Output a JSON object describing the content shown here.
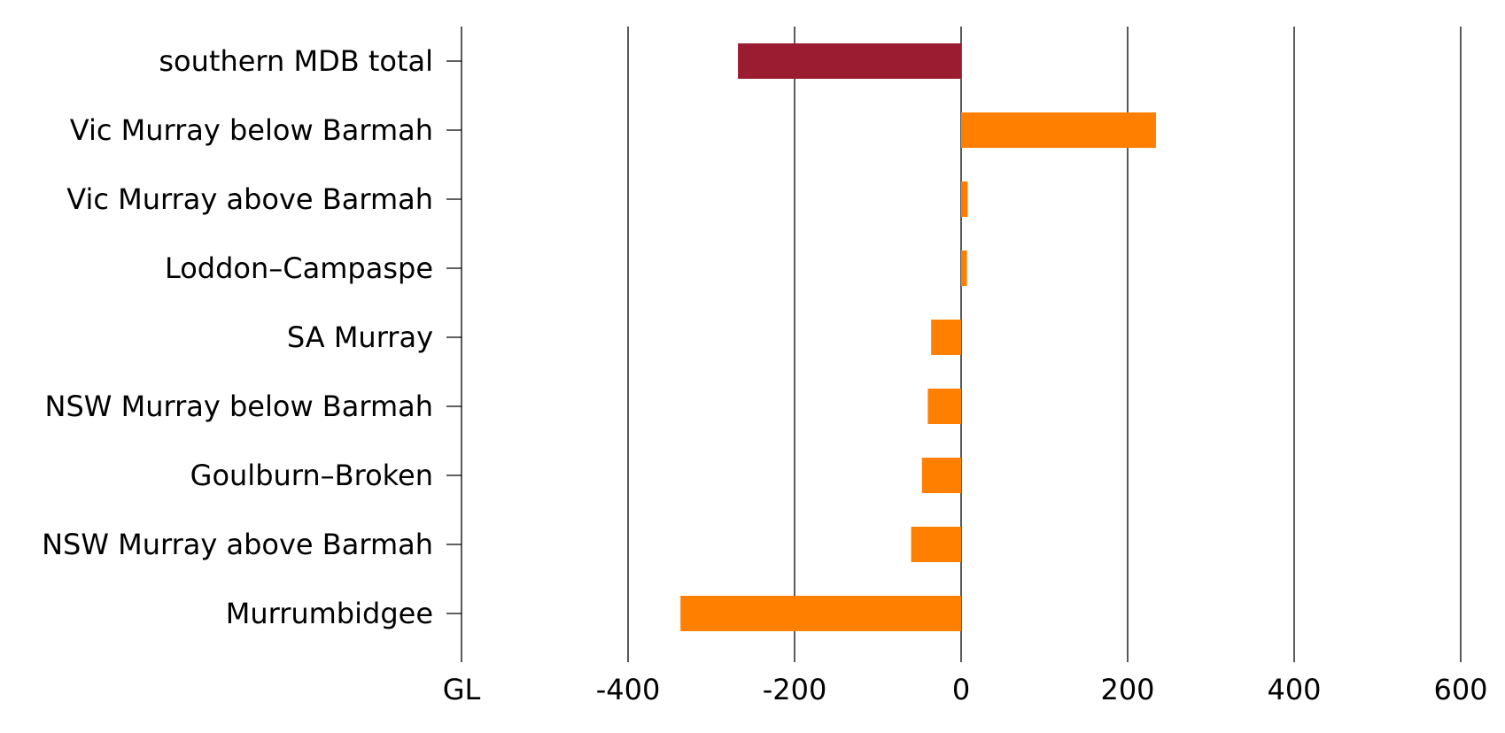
{
  "chart_data": {
    "type": "bar",
    "orientation": "horizontal",
    "categories": [
      "southern MDB total",
      "Vic Murray below Barmah",
      "Vic Murray above Barmah",
      "Loddon–Campaspe",
      "SA Murray",
      "NSW Murray below Barmah",
      "Goulburn–Broken",
      "NSW Murray above Barmah",
      "Murrumbidgee"
    ],
    "values": [
      -268,
      234,
      8,
      7,
      -36,
      -40,
      -47,
      -60,
      -337
    ],
    "bar_colors": [
      "#9B1B30",
      "#FF7F00",
      "#FF7F00",
      "#FF7F00",
      "#FF7F00",
      "#FF7F00",
      "#FF7F00",
      "#FF7F00",
      "#FF7F00"
    ],
    "xlim": [
      -600,
      600
    ],
    "x_ticks": [
      -400,
      -200,
      0,
      200,
      400,
      600
    ],
    "x_tick_labels": [
      "-400",
      "-200",
      "0",
      "200",
      "400",
      "600"
    ],
    "unit_label": "GL",
    "grid": true
  }
}
